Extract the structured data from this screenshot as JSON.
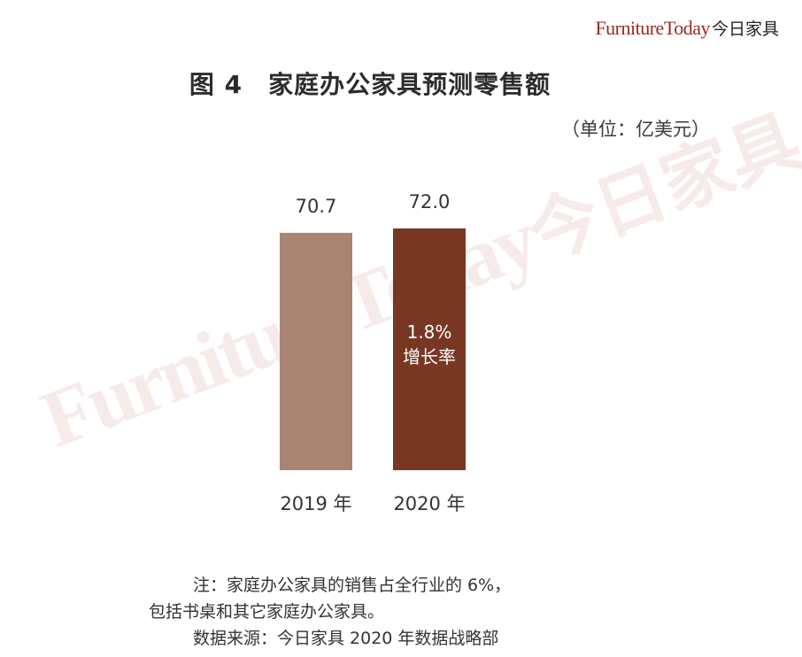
{
  "brand": {
    "latin": "FurnitureToday",
    "cn": "今日家具"
  },
  "title": "图 4　家庭办公家具预测零售额",
  "unit": "（单位：亿美元）",
  "watermark": {
    "latin": "FurnitureToday",
    "cn": "今日家具"
  },
  "chart_data": {
    "type": "bar",
    "categories": [
      "2019 年",
      "2020 年"
    ],
    "values": [
      70.7,
      72.0
    ],
    "value_labels": [
      "70.7",
      "72.0"
    ],
    "colors": [
      "#a88573",
      "#773723"
    ],
    "annotation": {
      "category_index": 1,
      "value": "1.8%",
      "label": "增长率"
    },
    "title": "图 4　家庭办公家具预测零售额",
    "ylabel": "",
    "grid": false
  },
  "notes": {
    "line1": "注：家庭办公家具的销售占全行业的 6%，",
    "line2": "包括书桌和其它家庭办公家具。",
    "line3": "数据来源：今日家具 2020 年数据战略部"
  }
}
